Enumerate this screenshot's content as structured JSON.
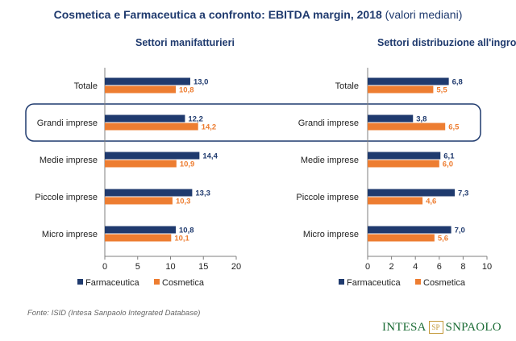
{
  "title": {
    "main": "Cosmetica e Farmaceutica a confronto: EBITDA margin, 2018",
    "sub": "(valori mediani)"
  },
  "highlighted_category": "Grandi imprese",
  "colors": {
    "farmaceutica": "#1f3a6e",
    "cosmetica": "#ed7d31",
    "highlight_border": "#1f3a6e"
  },
  "chart_data": [
    {
      "type": "bar",
      "orientation": "horizontal",
      "title": "Settori manifatturieri",
      "categories": [
        "Totale",
        "Grandi imprese",
        "Medie imprese",
        "Piccole imprese",
        "Micro imprese"
      ],
      "series": [
        {
          "name": "Farmaceutica",
          "values": [
            13.0,
            12.2,
            14.4,
            13.3,
            10.8
          ],
          "labels": [
            "13,0",
            "12,2",
            "14,4",
            "13,3",
            "10,8"
          ]
        },
        {
          "name": "Cosmetica",
          "values": [
            10.8,
            14.2,
            10.9,
            10.3,
            10.1
          ],
          "labels": [
            "10,8",
            "14,2",
            "10,9",
            "10,3",
            "10,1"
          ]
        }
      ],
      "xlim": [
        0,
        20
      ],
      "xticks": [
        "0",
        "5",
        "10",
        "15",
        "20"
      ],
      "legend_position": "bottom",
      "grid": false
    },
    {
      "type": "bar",
      "orientation": "horizontal",
      "title": "Settori distribuzione all'ingrosso",
      "categories": [
        "Totale",
        "Grandi imprese",
        "Medie imprese",
        "Piccole imprese",
        "Micro imprese"
      ],
      "series": [
        {
          "name": "Farmaceutica",
          "values": [
            6.8,
            3.8,
            6.1,
            7.3,
            7.0
          ],
          "labels": [
            "6,8",
            "3,8",
            "6,1",
            "7,3",
            "7,0"
          ]
        },
        {
          "name": "Cosmetica",
          "values": [
            5.5,
            6.5,
            6.0,
            4.6,
            5.6
          ],
          "labels": [
            "5,5",
            "6,5",
            "6,0",
            "4,6",
            "5,6"
          ]
        }
      ],
      "xlim": [
        0,
        10
      ],
      "xticks": [
        "0",
        "2",
        "4",
        "6",
        "8",
        "10"
      ],
      "legend_position": "bottom",
      "grid": false
    }
  ],
  "source": "Fonte: ISID (Intesa Sanpaolo Integrated Database)",
  "logo": {
    "left": "INTESA",
    "right": "SNPAOLO",
    "mark": "SP"
  }
}
